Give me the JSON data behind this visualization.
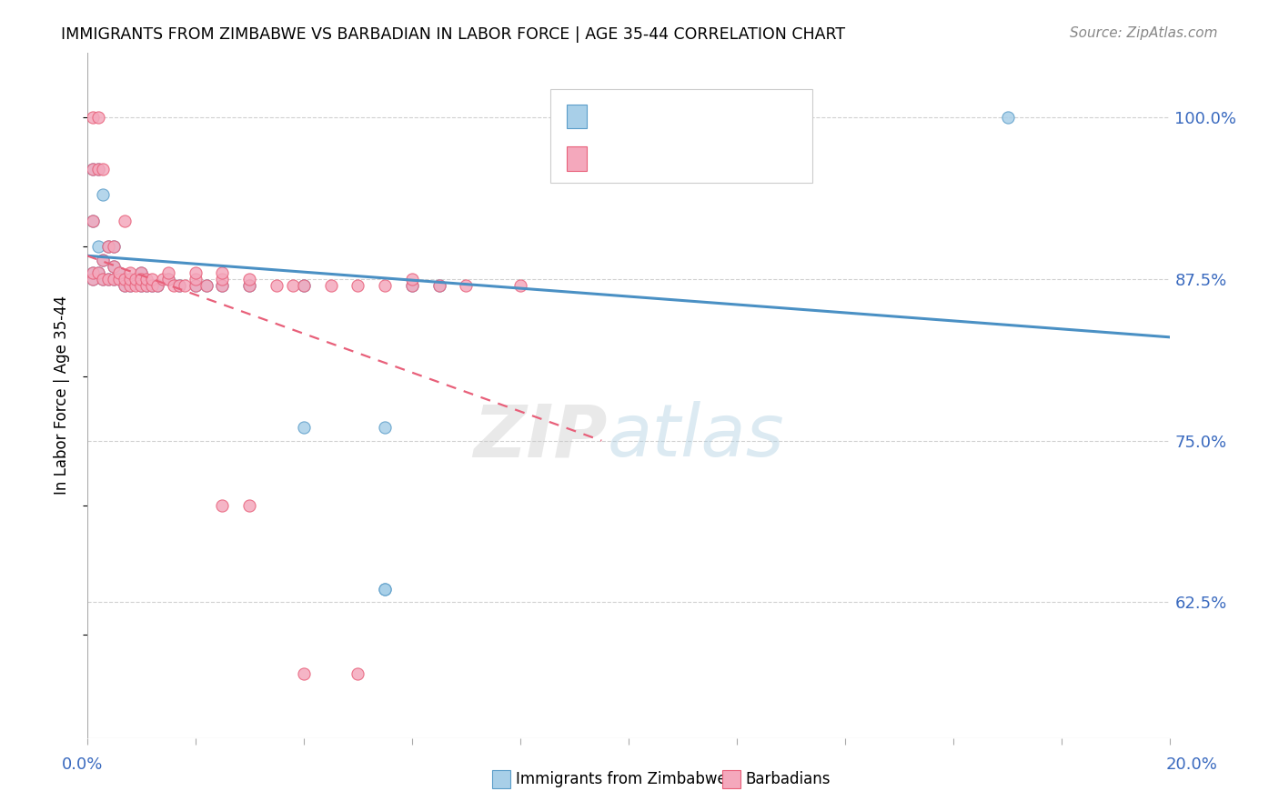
{
  "title": "IMMIGRANTS FROM ZIMBABWE VS BARBADIAN IN LABOR FORCE | AGE 35-44 CORRELATION CHART",
  "source": "Source: ZipAtlas.com",
  "ylabel": "In Labor Force | Age 35-44",
  "ytick_labels": [
    "100.0%",
    "87.5%",
    "75.0%",
    "62.5%"
  ],
  "ytick_values": [
    1.0,
    0.875,
    0.75,
    0.625
  ],
  "xlim": [
    0.0,
    0.2
  ],
  "ylim": [
    0.52,
    1.05
  ],
  "color_blue": "#a8cfe8",
  "color_pink": "#f4a8bc",
  "edge_blue": "#5b9dc9",
  "edge_pink": "#e8607a",
  "line_blue": "#4a90c4",
  "line_pink": "#e8607a",
  "zim_x": [
    0.001,
    0.001,
    0.001,
    0.001,
    0.002,
    0.002,
    0.002,
    0.003,
    0.003,
    0.003,
    0.004,
    0.004,
    0.005,
    0.005,
    0.005,
    0.006,
    0.006,
    0.007,
    0.007,
    0.008,
    0.008,
    0.009,
    0.01,
    0.01,
    0.011,
    0.012,
    0.013,
    0.015,
    0.017,
    0.02,
    0.022,
    0.025,
    0.03,
    0.04,
    0.055,
    0.055,
    0.06,
    0.065,
    0.1,
    0.17,
    0.04,
    0.055
  ],
  "zim_y": [
    0.875,
    0.92,
    0.96,
    0.88,
    0.88,
    0.9,
    0.96,
    0.875,
    0.89,
    0.94,
    0.875,
    0.9,
    0.875,
    0.885,
    0.9,
    0.875,
    0.88,
    0.87,
    0.875,
    0.87,
    0.875,
    0.875,
    0.87,
    0.88,
    0.87,
    0.87,
    0.87,
    0.875,
    0.87,
    0.87,
    0.87,
    0.87,
    0.87,
    0.76,
    0.76,
    0.635,
    0.87,
    0.87,
    1.0,
    1.0,
    0.87,
    0.635
  ],
  "barb_x": [
    0.001,
    0.001,
    0.001,
    0.001,
    0.001,
    0.002,
    0.002,
    0.002,
    0.003,
    0.003,
    0.003,
    0.004,
    0.004,
    0.005,
    0.005,
    0.005,
    0.006,
    0.006,
    0.007,
    0.007,
    0.007,
    0.008,
    0.008,
    0.008,
    0.009,
    0.009,
    0.01,
    0.01,
    0.01,
    0.011,
    0.011,
    0.012,
    0.012,
    0.013,
    0.014,
    0.015,
    0.015,
    0.016,
    0.017,
    0.018,
    0.02,
    0.02,
    0.02,
    0.022,
    0.025,
    0.025,
    0.025,
    0.03,
    0.03,
    0.035,
    0.038,
    0.04,
    0.045,
    0.05,
    0.055,
    0.06,
    0.06,
    0.065,
    0.07,
    0.08,
    0.025,
    0.03,
    0.04,
    0.05
  ],
  "barb_y": [
    0.875,
    0.92,
    0.96,
    1.0,
    0.88,
    0.88,
    0.96,
    1.0,
    0.875,
    0.89,
    0.96,
    0.875,
    0.9,
    0.875,
    0.885,
    0.9,
    0.875,
    0.88,
    0.87,
    0.875,
    0.92,
    0.87,
    0.875,
    0.88,
    0.87,
    0.875,
    0.87,
    0.88,
    0.875,
    0.87,
    0.875,
    0.87,
    0.875,
    0.87,
    0.875,
    0.875,
    0.88,
    0.87,
    0.87,
    0.87,
    0.87,
    0.875,
    0.88,
    0.87,
    0.87,
    0.875,
    0.88,
    0.87,
    0.875,
    0.87,
    0.87,
    0.87,
    0.87,
    0.87,
    0.87,
    0.87,
    0.875,
    0.87,
    0.87,
    0.87,
    0.7,
    0.7,
    0.57,
    0.57
  ],
  "zim_trendline": [
    0.893,
    0.83
  ],
  "barb_trendline_x": [
    0.0,
    0.095
  ],
  "barb_trendline_y": [
    0.893,
    0.75
  ],
  "watermark_zip_color": "#c8c8c8",
  "watermark_atlas_color": "#a8cce0"
}
